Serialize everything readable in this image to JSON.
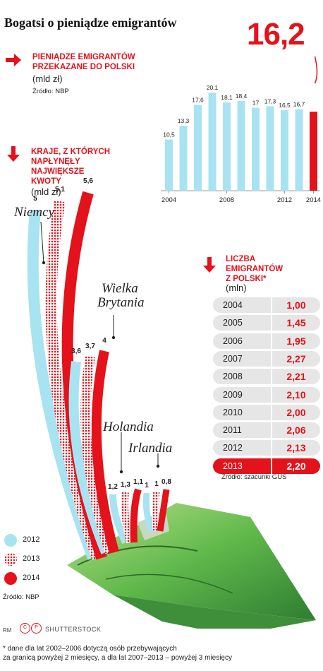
{
  "title": "Bogatsi o pieniądze emigrantów",
  "colors": {
    "accent": "#e3121b",
    "light_blue": "#a8e3f1",
    "grey": "#e6e6e6"
  },
  "section1": {
    "heading": [
      "PIENIĄDZE EMIGRANTÓW",
      "PRZEKAZANE DO POLSKI"
    ],
    "unit": "(mld zł)",
    "source": "Źródło: NBP",
    "highlight_value": "16,2"
  },
  "section2": {
    "heading": [
      "KRAJE, Z KTÓRYCH",
      "NAPŁYNĘŁY",
      "NAJWIĘKSZE",
      "KWOTY"
    ],
    "unit": "(mld zł)",
    "source": "Źródło: NBP",
    "countries": [
      "Niemcy",
      "Wielka",
      "Brytania",
      "Holandia",
      "Irlandia"
    ],
    "legend": [
      "2012",
      "2013",
      "2014"
    ]
  },
  "section3": {
    "heading": [
      "LICZBA",
      "EMIGRANTÓW",
      "Z POLSKI*"
    ],
    "unit": "(mln)",
    "source": "Źródło: szacunki GUS"
  },
  "credits": {
    "rm": "RM",
    "cp": "CP",
    "photo": "SHUTTERSTOCK"
  },
  "footnote": [
    "* dane dla lat 2002–2006 dotyczą osób przebywających",
    "za granicą powyżej 2 miesięcy, a dla lat 2007–2013 – powyżej 3 miesięcy"
  ],
  "chart_data": [
    {
      "type": "bar",
      "title": "PIENIĄDZE EMIGRANTÓW PRZEKAZANE DO POLSKI",
      "ylabel": "(mld zł)",
      "categories": [
        "2004",
        "2005",
        "2006",
        "2007",
        "2008",
        "2009",
        "2010",
        "2011",
        "2012",
        "2013",
        "2014"
      ],
      "x_tick_labels": [
        "2004",
        "2008",
        "2012",
        "2014"
      ],
      "values": [
        10.5,
        13.3,
        17.6,
        20.1,
        18.1,
        18.4,
        17.0,
        17.3,
        16.5,
        16.7,
        16.2
      ],
      "value_labels": [
        "10,5",
        "13,3",
        "17,6",
        "20,1",
        "18,1",
        "18,4",
        "17",
        "17,3",
        "16,5",
        "16,7",
        ""
      ],
      "ylim": [
        0,
        21
      ],
      "grid": false
    },
    {
      "type": "bar",
      "title": "KRAJE, Z KTÓRYCH NAPŁYNĘŁY NAJWIĘKSZE KWOTY",
      "ylabel": "(mld zł)",
      "categories": [
        "Niemcy",
        "Wielka Brytania",
        "Holandia",
        "Irlandia"
      ],
      "series": [
        {
          "name": "2012",
          "values": [
            5.0,
            3.6,
            1.2,
            1.0
          ],
          "labels": [
            "5",
            "3,6",
            "1,2",
            "1"
          ]
        },
        {
          "name": "2013",
          "values": [
            5.1,
            3.7,
            1.3,
            1.0
          ],
          "labels": [
            "5,1",
            "3,7",
            "1,3",
            "1"
          ]
        },
        {
          "name": "2014",
          "values": [
            5.6,
            4.0,
            1.1,
            0.8
          ],
          "labels": [
            "5,6",
            "4",
            "1,1",
            "0,8"
          ]
        }
      ],
      "legend": "bottom-left"
    },
    {
      "type": "table",
      "title": "LICZBA EMIGRANTÓW Z POLSKI*",
      "ylabel": "(mln)",
      "rows": [
        {
          "year": "2004",
          "value": "1,00"
        },
        {
          "year": "2005",
          "value": "1,45"
        },
        {
          "year": "2006",
          "value": "1,95"
        },
        {
          "year": "2007",
          "value": "2,27"
        },
        {
          "year": "2008",
          "value": "2,21"
        },
        {
          "year": "2009",
          "value": "2,10"
        },
        {
          "year": "2010",
          "value": "2,00"
        },
        {
          "year": "2011",
          "value": "2,06"
        },
        {
          "year": "2012",
          "value": "2,13"
        },
        {
          "year": "2013",
          "value": "2,20"
        }
      ]
    }
  ]
}
